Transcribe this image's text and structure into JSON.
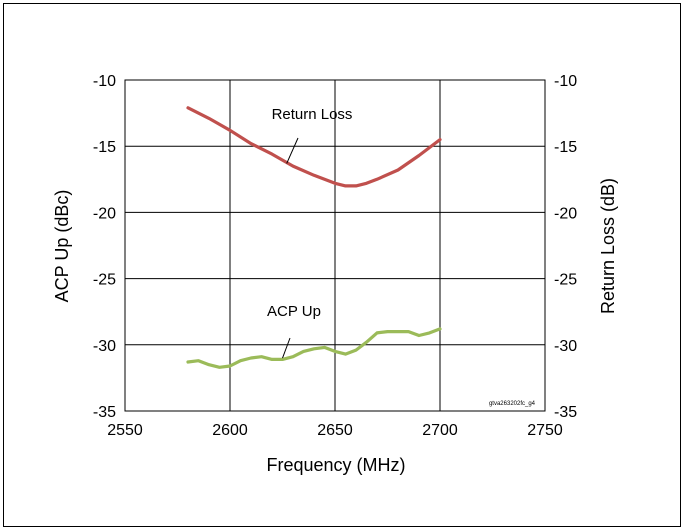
{
  "chart_data": {
    "type": "line",
    "xlabel": "Frequency (MHz)",
    "ylabel": "ACP Up (dBc)",
    "y2label": "Return Loss (dB)",
    "xlim": [
      2550,
      2750
    ],
    "ylim": [
      -35,
      -10
    ],
    "y2lim": [
      -35,
      -10
    ],
    "xticks": [
      "2550",
      "2600",
      "2650",
      "2700",
      "2750"
    ],
    "yticks": [
      "-10",
      "-15",
      "-20",
      "-25",
      "-30",
      "-35"
    ],
    "y2ticks": [
      "-10",
      "-15",
      "-20",
      "-25",
      "-30",
      "-35"
    ],
    "grid": true,
    "figure_code": "gtva263202fc_g4",
    "series": [
      {
        "name": "Return Loss",
        "axis": "right",
        "color": "#c0504d",
        "x": [
          2580,
          2590,
          2600,
          2610,
          2620,
          2630,
          2640,
          2650,
          2655,
          2660,
          2665,
          2670,
          2680,
          2690,
          2700
        ],
        "y": [
          -12.1,
          -12.9,
          -13.8,
          -14.8,
          -15.6,
          -16.5,
          -17.2,
          -17.8,
          -18.0,
          -18.0,
          -17.8,
          -17.5,
          -16.8,
          -15.7,
          -14.5
        ]
      },
      {
        "name": "ACP Up",
        "axis": "left",
        "color": "#9bbb59",
        "x": [
          2580,
          2585,
          2590,
          2595,
          2600,
          2605,
          2610,
          2615,
          2620,
          2625,
          2630,
          2635,
          2640,
          2645,
          2650,
          2655,
          2660,
          2665,
          2670,
          2675,
          2680,
          2685,
          2690,
          2695,
          2700
        ],
        "y": [
          -31.3,
          -31.2,
          -31.5,
          -31.7,
          -31.6,
          -31.2,
          -31.0,
          -30.9,
          -31.1,
          -31.1,
          -30.9,
          -30.5,
          -30.3,
          -30.2,
          -30.5,
          -30.7,
          -30.4,
          -29.8,
          -29.1,
          -29.0,
          -29.0,
          -29.0,
          -29.3,
          -29.1,
          -28.8
        ]
      }
    ],
    "annotations": [
      {
        "text": "Return Loss",
        "target_x": 2627,
        "target_y": -16.3
      },
      {
        "text": "ACP Up",
        "target_x": 2625,
        "target_y": -31.0
      }
    ]
  }
}
